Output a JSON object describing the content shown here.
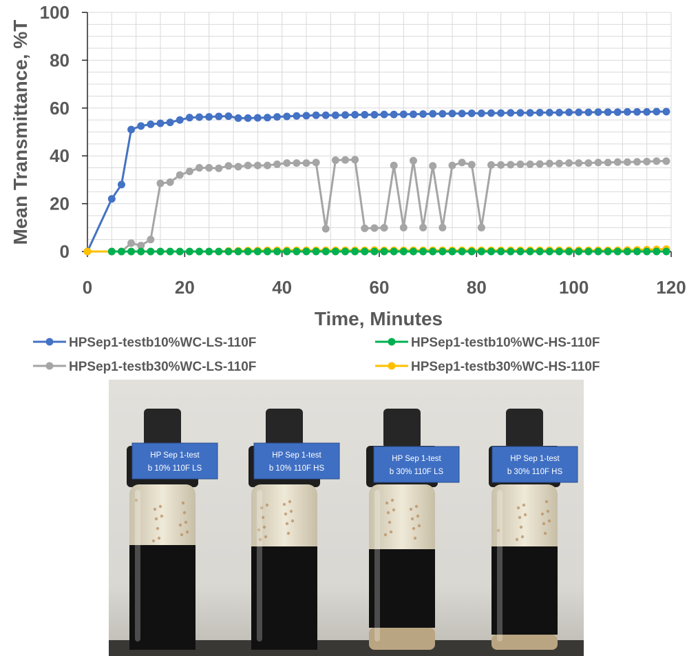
{
  "chart_data": {
    "type": "line",
    "title": "",
    "xlabel": "Time, Minutes",
    "ylabel": "Mean Transmittance, %T",
    "xlim": [
      0,
      120
    ],
    "ylim": [
      0,
      100
    ],
    "xticks": [
      "0",
      "20",
      "40",
      "60",
      "80",
      "100",
      "120"
    ],
    "yticks": [
      "0",
      "20",
      "40",
      "60",
      "80",
      "100"
    ],
    "grid": true,
    "legend_position": "bottom",
    "series": [
      {
        "name": "HPSep1-testb10%WC-LS-110F",
        "color": "#4472C4",
        "x": [
          0,
          5,
          7,
          9,
          11,
          13,
          15,
          17,
          19,
          21,
          23,
          25,
          27,
          29,
          31,
          33,
          35,
          37,
          39,
          41,
          43,
          45,
          47,
          49,
          51,
          53,
          55,
          57,
          59,
          61,
          63,
          65,
          67,
          69,
          71,
          73,
          75,
          77,
          79,
          81,
          83,
          85,
          87,
          89,
          91,
          93,
          95,
          97,
          99,
          101,
          103,
          105,
          107,
          109,
          111,
          113,
          115,
          117,
          119
        ],
        "y": [
          0,
          22,
          28,
          51,
          52.5,
          53.2,
          53.6,
          54,
          55,
          56,
          56.2,
          56.3,
          56.5,
          56.6,
          55.8,
          55.8,
          55.9,
          56,
          56.3,
          56.5,
          56.7,
          56.8,
          57,
          57,
          57,
          57.1,
          57.2,
          57.2,
          57.2,
          57.3,
          57.3,
          57.4,
          57.4,
          57.5,
          57.6,
          57.6,
          57.7,
          57.7,
          57.8,
          57.8,
          57.9,
          57.9,
          58,
          58,
          58,
          58.1,
          58.1,
          58.1,
          58.2,
          58.2,
          58.2,
          58.3,
          58.3,
          58.3,
          58.4,
          58.4,
          58.4,
          58.5,
          58.5
        ]
      },
      {
        "name": "HPSep1-testb10%WC-HS-110F",
        "color": "#00B050",
        "x": [
          5,
          7,
          9,
          11,
          13,
          15,
          17,
          19,
          21,
          23,
          25,
          27,
          29,
          31,
          33,
          35,
          37,
          39,
          41,
          43,
          45,
          47,
          49,
          51,
          53,
          55,
          57,
          59,
          61,
          63,
          65,
          67,
          69,
          71,
          73,
          75,
          77,
          79,
          81,
          83,
          85,
          87,
          89,
          91,
          93,
          95,
          97,
          99,
          101,
          103,
          105,
          107,
          109,
          111,
          113,
          115,
          117,
          119
        ],
        "y": [
          0,
          0,
          0,
          0,
          0,
          0,
          0,
          0,
          0,
          0,
          0,
          0,
          0,
          0,
          0,
          0,
          0,
          0,
          0,
          0,
          0,
          0,
          0,
          0,
          0,
          0,
          0,
          0,
          0,
          0,
          0,
          0,
          0,
          0,
          0,
          0,
          0,
          0,
          0,
          0,
          0,
          0,
          0,
          0,
          0,
          0,
          0,
          0,
          0,
          0,
          0,
          0,
          0,
          0,
          0,
          0,
          0,
          0
        ]
      },
      {
        "name": "HPSep1-testb30%WC-LS-110F",
        "color": "#A5A5A5",
        "x": [
          0,
          5,
          7,
          9,
          11,
          13,
          15,
          17,
          19,
          21,
          23,
          25,
          27,
          29,
          31,
          33,
          35,
          37,
          39,
          41,
          43,
          45,
          47,
          49,
          51,
          53,
          55,
          57,
          59,
          61,
          63,
          65,
          67,
          69,
          71,
          73,
          75,
          77,
          79,
          81,
          83,
          85,
          87,
          89,
          91,
          93,
          95,
          97,
          99,
          101,
          103,
          105,
          107,
          109,
          111,
          113,
          115,
          117,
          119
        ],
        "y": [
          0,
          0,
          0,
          3.5,
          2.5,
          5,
          28.5,
          29,
          32,
          33.5,
          35,
          35,
          34.8,
          35.8,
          35.5,
          36,
          36,
          36,
          36.5,
          37,
          37,
          37,
          37.2,
          9.5,
          38.2,
          38.3,
          38.4,
          9.7,
          9.8,
          9.9,
          36,
          10,
          38,
          10,
          35.8,
          10,
          36,
          37.2,
          36.3,
          10,
          36.2,
          36.2,
          36.3,
          36.5,
          36.5,
          36.6,
          36.8,
          36.8,
          37,
          37,
          37,
          37.2,
          37.2,
          37.4,
          37.4,
          37.5,
          37.6,
          37.8,
          37.8
        ]
      },
      {
        "name": "HPSep1-testb30%WC-HS-110F",
        "color": "#FFC000",
        "x": [
          0,
          5,
          7,
          9,
          11,
          13,
          15,
          17,
          19,
          21,
          23,
          25,
          27,
          29,
          31,
          33,
          35,
          37,
          39,
          41,
          43,
          45,
          47,
          49,
          51,
          53,
          55,
          57,
          59,
          61,
          63,
          65,
          67,
          69,
          71,
          73,
          75,
          77,
          79,
          81,
          83,
          85,
          87,
          89,
          91,
          93,
          95,
          97,
          99,
          101,
          103,
          105,
          107,
          109,
          111,
          113,
          115,
          117,
          119
        ],
        "y": [
          0,
          0,
          0,
          0,
          0,
          0,
          0,
          0,
          0,
          0,
          0,
          0,
          0,
          0.2,
          0.3,
          0.4,
          0.4,
          0.5,
          0.5,
          0.5,
          0.5,
          0.5,
          0.5,
          0.5,
          0.5,
          0.5,
          0.5,
          0.5,
          0.6,
          0.5,
          0.5,
          0.5,
          0.5,
          0.5,
          0.5,
          0.5,
          0.5,
          0.5,
          0.5,
          0.5,
          0.5,
          0.5,
          0.5,
          0.5,
          0.5,
          0.5,
          0.5,
          0.5,
          0.5,
          0.5,
          0.5,
          0.5,
          0.5,
          0.5,
          0.6,
          0.7,
          0.8,
          0.9,
          1.0
        ]
      }
    ]
  },
  "photo": {
    "labels": [
      {
        "line1": "HP Sep 1-test",
        "line2": "b 10% 110F LS"
      },
      {
        "line1": "HP Sep 1-test",
        "line2": "b 10% 110F HS"
      },
      {
        "line1": "HP Sep 1-test",
        "line2": "b 30% 110F LS"
      },
      {
        "line1": "HP Sep 1-test",
        "line2": "b 30% 110F HS"
      }
    ],
    "colors": {
      "label_bg": "#3F6FC3",
      "cap": "#262626",
      "oil": "#111111",
      "water": "#E3DCC8",
      "backdrop": "#D9D7D2"
    }
  }
}
